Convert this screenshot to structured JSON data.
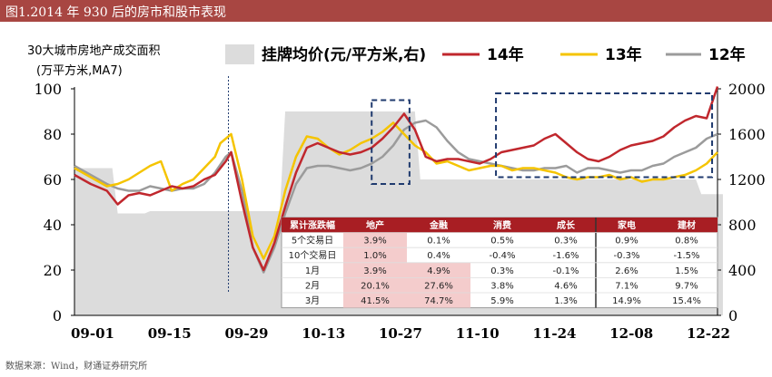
{
  "header": {
    "title": "图1.2014 年 930 后的房市和股市表现"
  },
  "source": "数据来源：Wind，财通证券研究所",
  "colors": {
    "title_bg": "#a84642",
    "s14": "#c0272d",
    "s13": "#f5c400",
    "s12": "#9b9b9b",
    "area": "#dcdcdc",
    "box": "#1f3a6e",
    "table_header": "#a81e23",
    "table_highlight": "#f4cccc"
  },
  "chart_data": {
    "type": "line",
    "left_axis_label": [
      "30大城市房地产成交面积",
      "(万平方米,MA7)"
    ],
    "ylim_left": [
      0,
      100
    ],
    "yticks_left": [
      0,
      20,
      40,
      60,
      80,
      100
    ],
    "ylim_right": [
      0,
      2000
    ],
    "yticks_right": [
      0,
      400,
      800,
      1200,
      1600,
      2000
    ],
    "xticks": [
      "09-01",
      "09-15",
      "09-29",
      "10-13",
      "10-27",
      "11-10",
      "11-24",
      "12-08",
      "12-22"
    ],
    "x_count": 120,
    "marker_line_index": 29,
    "legend": {
      "area": "挂牌均价(元/平方米,右)",
      "s14": "14年",
      "s13": "13年",
      "s12": "12年"
    },
    "area_series": {
      "name": "挂牌均价(元/平方米,右)",
      "axis": "right",
      "values": [
        1300,
        1300,
        1300,
        1300,
        1300,
        1300,
        1300,
        1300,
        900,
        900,
        900,
        900,
        900,
        900,
        920,
        920,
        920,
        920,
        920,
        920,
        920,
        920,
        920,
        920,
        920,
        920,
        920,
        920,
        920,
        920,
        920,
        920,
        920,
        920,
        920,
        920,
        920,
        920,
        920,
        1800,
        1800,
        1800,
        1800,
        1800,
        1800,
        1800,
        1800,
        1800,
        1800,
        1800,
        1800,
        1800,
        1800,
        1800,
        1800,
        1800,
        1800,
        1800,
        1800,
        1800,
        1800,
        1800,
        1800,
        1800,
        1200,
        1200,
        1200,
        1200,
        1200,
        1200,
        1200,
        1200,
        1200,
        1200,
        1200,
        1200,
        1200,
        1200,
        1200,
        1200,
        1200,
        1200,
        1200,
        1200,
        1200,
        1200,
        1200,
        1200,
        1200,
        1200,
        1200,
        1200,
        1200,
        1200,
        1200,
        1200,
        1200,
        1200,
        1200,
        1200,
        1200,
        1200,
        1200,
        1200,
        1200,
        1200,
        1200,
        1200,
        1200,
        1200,
        1200,
        1200,
        1200,
        1200,
        1200,
        1200,
        1070,
        1070,
        1070,
        1070,
        1070
      ]
    },
    "series": [
      {
        "name": "14年",
        "color": "#c0272d",
        "width": 2.5,
        "points": [
          [
            0,
            62
          ],
          [
            3,
            58
          ],
          [
            6,
            55
          ],
          [
            8,
            49
          ],
          [
            10,
            53
          ],
          [
            12,
            54
          ],
          [
            14,
            53
          ],
          [
            16,
            55
          ],
          [
            18,
            57
          ],
          [
            20,
            56
          ],
          [
            22,
            57
          ],
          [
            24,
            60
          ],
          [
            26,
            62
          ],
          [
            28,
            68
          ],
          [
            29,
            72
          ],
          [
            31,
            50
          ],
          [
            33,
            30
          ],
          [
            35,
            20
          ],
          [
            37,
            32
          ],
          [
            39,
            48
          ],
          [
            41,
            63
          ],
          [
            43,
            74
          ],
          [
            45,
            76
          ],
          [
            47,
            74
          ],
          [
            49,
            72
          ],
          [
            51,
            71
          ],
          [
            53,
            72
          ],
          [
            55,
            74
          ],
          [
            57,
            78
          ],
          [
            59,
            83
          ],
          [
            61,
            89
          ],
          [
            63,
            82
          ],
          [
            65,
            70
          ],
          [
            67,
            68
          ],
          [
            69,
            69
          ],
          [
            71,
            69
          ],
          [
            73,
            68
          ],
          [
            75,
            67
          ],
          [
            77,
            69
          ],
          [
            79,
            72
          ],
          [
            81,
            73
          ],
          [
            83,
            74
          ],
          [
            85,
            75
          ],
          [
            87,
            78
          ],
          [
            89,
            80
          ],
          [
            91,
            76
          ],
          [
            93,
            72
          ],
          [
            95,
            69
          ],
          [
            97,
            68
          ],
          [
            99,
            70
          ],
          [
            101,
            73
          ],
          [
            103,
            75
          ],
          [
            105,
            76
          ],
          [
            107,
            77
          ],
          [
            109,
            79
          ],
          [
            111,
            83
          ],
          [
            113,
            86
          ],
          [
            115,
            88
          ],
          [
            117,
            87
          ],
          [
            119,
            101
          ]
        ]
      },
      {
        "name": "13年",
        "color": "#f5c400",
        "width": 2.5,
        "points": [
          [
            0,
            65
          ],
          [
            3,
            61
          ],
          [
            6,
            57
          ],
          [
            8,
            58
          ],
          [
            10,
            60
          ],
          [
            12,
            63
          ],
          [
            14,
            66
          ],
          [
            16,
            68
          ],
          [
            18,
            55
          ],
          [
            20,
            58
          ],
          [
            22,
            60
          ],
          [
            24,
            65
          ],
          [
            26,
            70
          ],
          [
            27,
            76
          ],
          [
            29,
            80
          ],
          [
            31,
            60
          ],
          [
            33,
            35
          ],
          [
            35,
            25
          ],
          [
            37,
            35
          ],
          [
            39,
            55
          ],
          [
            41,
            70
          ],
          [
            43,
            79
          ],
          [
            45,
            78
          ],
          [
            47,
            74
          ],
          [
            49,
            71
          ],
          [
            51,
            73
          ],
          [
            53,
            76
          ],
          [
            55,
            78
          ],
          [
            57,
            81
          ],
          [
            59,
            85
          ],
          [
            61,
            80
          ],
          [
            63,
            75
          ],
          [
            65,
            72
          ],
          [
            67,
            67
          ],
          [
            69,
            68
          ],
          [
            71,
            66
          ],
          [
            73,
            64
          ],
          [
            75,
            65
          ],
          [
            77,
            66
          ],
          [
            79,
            66
          ],
          [
            81,
            64
          ],
          [
            83,
            65
          ],
          [
            85,
            65
          ],
          [
            87,
            64
          ],
          [
            89,
            63
          ],
          [
            91,
            61
          ],
          [
            93,
            60
          ],
          [
            95,
            61
          ],
          [
            97,
            61
          ],
          [
            99,
            62
          ],
          [
            101,
            60
          ],
          [
            103,
            61
          ],
          [
            105,
            59
          ],
          [
            107,
            60
          ],
          [
            109,
            60
          ],
          [
            111,
            61
          ],
          [
            113,
            62
          ],
          [
            115,
            64
          ],
          [
            117,
            67
          ],
          [
            119,
            72
          ]
        ]
      },
      {
        "name": "12年",
        "color": "#9b9b9b",
        "width": 2.5,
        "points": [
          [
            0,
            66
          ],
          [
            3,
            62
          ],
          [
            6,
            58
          ],
          [
            8,
            56
          ],
          [
            10,
            55
          ],
          [
            12,
            55
          ],
          [
            14,
            57
          ],
          [
            16,
            56
          ],
          [
            18,
            55
          ],
          [
            20,
            56
          ],
          [
            22,
            56
          ],
          [
            24,
            58
          ],
          [
            26,
            63
          ],
          [
            28,
            70
          ],
          [
            29,
            72
          ],
          [
            31,
            55
          ],
          [
            33,
            30
          ],
          [
            35,
            19
          ],
          [
            37,
            30
          ],
          [
            39,
            45
          ],
          [
            41,
            58
          ],
          [
            43,
            65
          ],
          [
            45,
            66
          ],
          [
            47,
            66
          ],
          [
            49,
            65
          ],
          [
            51,
            64
          ],
          [
            53,
            65
          ],
          [
            55,
            67
          ],
          [
            57,
            70
          ],
          [
            59,
            75
          ],
          [
            61,
            82
          ],
          [
            63,
            85
          ],
          [
            65,
            86
          ],
          [
            67,
            83
          ],
          [
            69,
            77
          ],
          [
            71,
            72
          ],
          [
            73,
            69
          ],
          [
            75,
            68
          ],
          [
            77,
            67
          ],
          [
            79,
            66
          ],
          [
            81,
            65
          ],
          [
            83,
            64
          ],
          [
            85,
            64
          ],
          [
            87,
            65
          ],
          [
            89,
            65
          ],
          [
            91,
            66
          ],
          [
            93,
            63
          ],
          [
            95,
            65
          ],
          [
            97,
            65
          ],
          [
            99,
            64
          ],
          [
            101,
            63
          ],
          [
            103,
            64
          ],
          [
            105,
            64
          ],
          [
            107,
            66
          ],
          [
            109,
            67
          ],
          [
            111,
            70
          ],
          [
            113,
            72
          ],
          [
            115,
            74
          ],
          [
            117,
            78
          ],
          [
            119,
            80
          ]
        ]
      }
    ],
    "dashed_boxes": [
      {
        "x_range": [
          55,
          62
        ],
        "y_range": [
          58,
          95
        ]
      },
      {
        "x_range": [
          78,
          118
        ],
        "y_range": [
          61,
          98
        ]
      }
    ],
    "table": {
      "headers": [
        "累计涨跌幅",
        "地产",
        "金融",
        "消费",
        "成长",
        "家电",
        "建材"
      ],
      "rows": [
        [
          "5个交易日",
          "3.9%",
          "0.1%",
          "0.5%",
          "0.3%",
          "0.9%",
          "0.8%"
        ],
        [
          "10个交易日",
          "1.0%",
          "0.4%",
          "-0.4%",
          "-1.6%",
          "-0.3%",
          "-1.5%"
        ],
        [
          "1月",
          "3.9%",
          "4.9%",
          "0.3%",
          "-0.1%",
          "2.6%",
          "1.5%"
        ],
        [
          "2月",
          "20.1%",
          "27.6%",
          "3.8%",
          "4.6%",
          "7.1%",
          "9.7%"
        ],
        [
          "3月",
          "41.5%",
          "74.7%",
          "5.9%",
          "1.3%",
          "14.9%",
          "15.4%"
        ]
      ],
      "highlight_cells": [
        [
          0,
          1
        ],
        [
          1,
          1
        ],
        [
          2,
          1
        ],
        [
          2,
          2
        ],
        [
          3,
          1
        ],
        [
          3,
          2
        ],
        [
          4,
          1
        ],
        [
          4,
          2
        ]
      ]
    }
  }
}
